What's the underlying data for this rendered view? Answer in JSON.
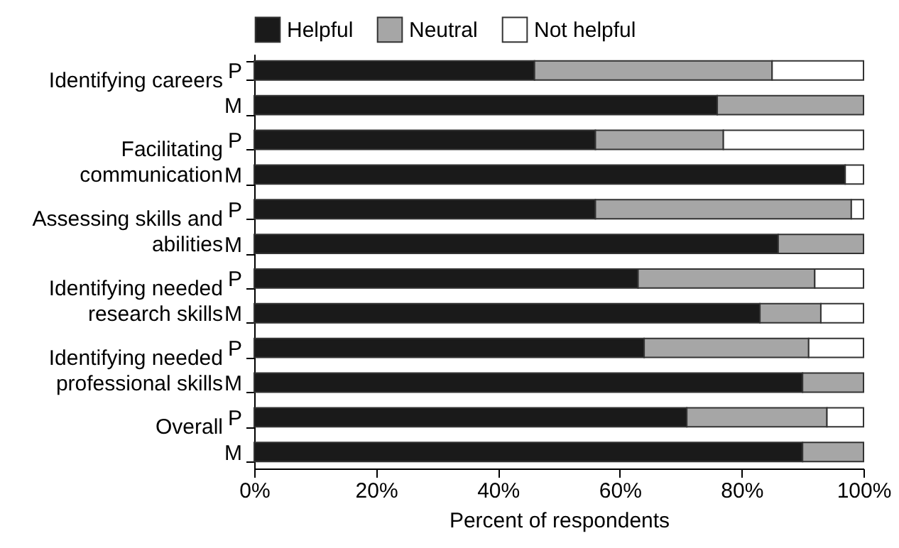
{
  "chart_data": {
    "type": "bar",
    "orientation": "horizontal",
    "stacked": true,
    "xlabel": "Percent of respondents",
    "categories": [
      "P",
      "M",
      "P",
      "M",
      "P",
      "M",
      "P",
      "M",
      "P",
      "M",
      "P",
      "M"
    ],
    "series": [
      {
        "name": "Helpful",
        "color": "#1a1a1a",
        "values": [
          46,
          76,
          56,
          97,
          56,
          86,
          63,
          83,
          64,
          90,
          71,
          90
        ]
      },
      {
        "name": "Neutral",
        "color": "#a6a6a6",
        "values": [
          39,
          24,
          21,
          0,
          42,
          14,
          29,
          10,
          27,
          10,
          23,
          10
        ]
      },
      {
        "name": "Not helpful",
        "color": "#ffffff",
        "values": [
          15,
          0,
          23,
          3,
          2,
          0,
          8,
          7,
          9,
          0,
          6,
          0
        ]
      }
    ],
    "annotations": [
      "Identifying careers",
      "Facilitating\ncommunication",
      "Assessing skills and\nabilities",
      "Identifying needed\nresearch skills",
      "Identifying needed\nprofessional skills",
      "Overall"
    ],
    "xlim": [
      0,
      100
    ],
    "xticks": [
      {
        "value": 0,
        "label": "0%"
      },
      {
        "value": 20,
        "label": "20%"
      },
      {
        "value": 40,
        "label": "40%"
      },
      {
        "value": 60,
        "label": "60%"
      },
      {
        "value": 80,
        "label": "80%"
      },
      {
        "value": 100,
        "label": "100%"
      }
    ],
    "grid": false,
    "legend": "top"
  }
}
